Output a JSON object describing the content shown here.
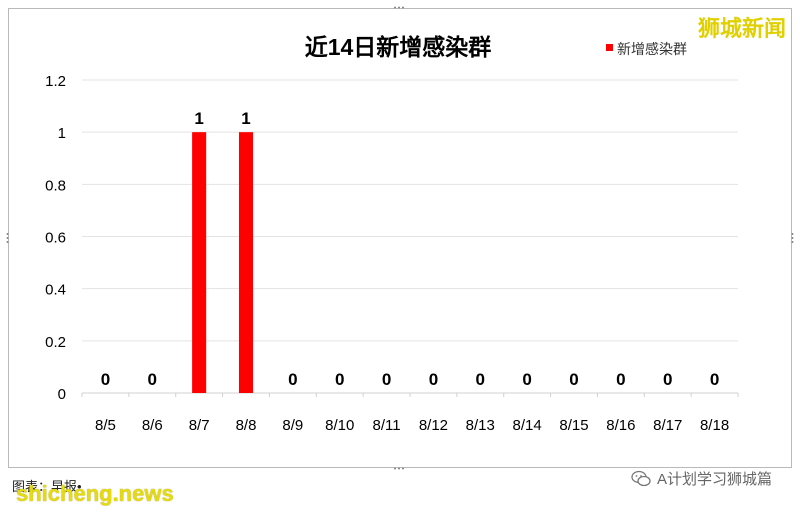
{
  "chart_data": {
    "type": "bar",
    "title": "近14日新增感染群",
    "categories": [
      "8/5",
      "8/6",
      "8/7",
      "8/8",
      "8/9",
      "8/10",
      "8/11",
      "8/12",
      "8/13",
      "8/14",
      "8/15",
      "8/16",
      "8/17",
      "8/18"
    ],
    "series": [
      {
        "name": "新增感染群",
        "values": [
          0,
          0,
          1,
          1,
          0,
          0,
          0,
          0,
          0,
          0,
          0,
          0,
          0,
          0
        ],
        "color": "#ff0000"
      }
    ],
    "ylim": [
      0,
      1.2
    ],
    "yticks": [
      "0",
      "0.2",
      "0.4",
      "0.6",
      "0.8",
      "1",
      "1.2"
    ],
    "grid": true,
    "legend": "top-right",
    "data_labels": true
  },
  "watermark": "狮城新闻",
  "footer": {
    "note": "图表：早报•                         ",
    "site": "shicheng.news",
    "wechat_label": "A计划学习狮城篇"
  }
}
